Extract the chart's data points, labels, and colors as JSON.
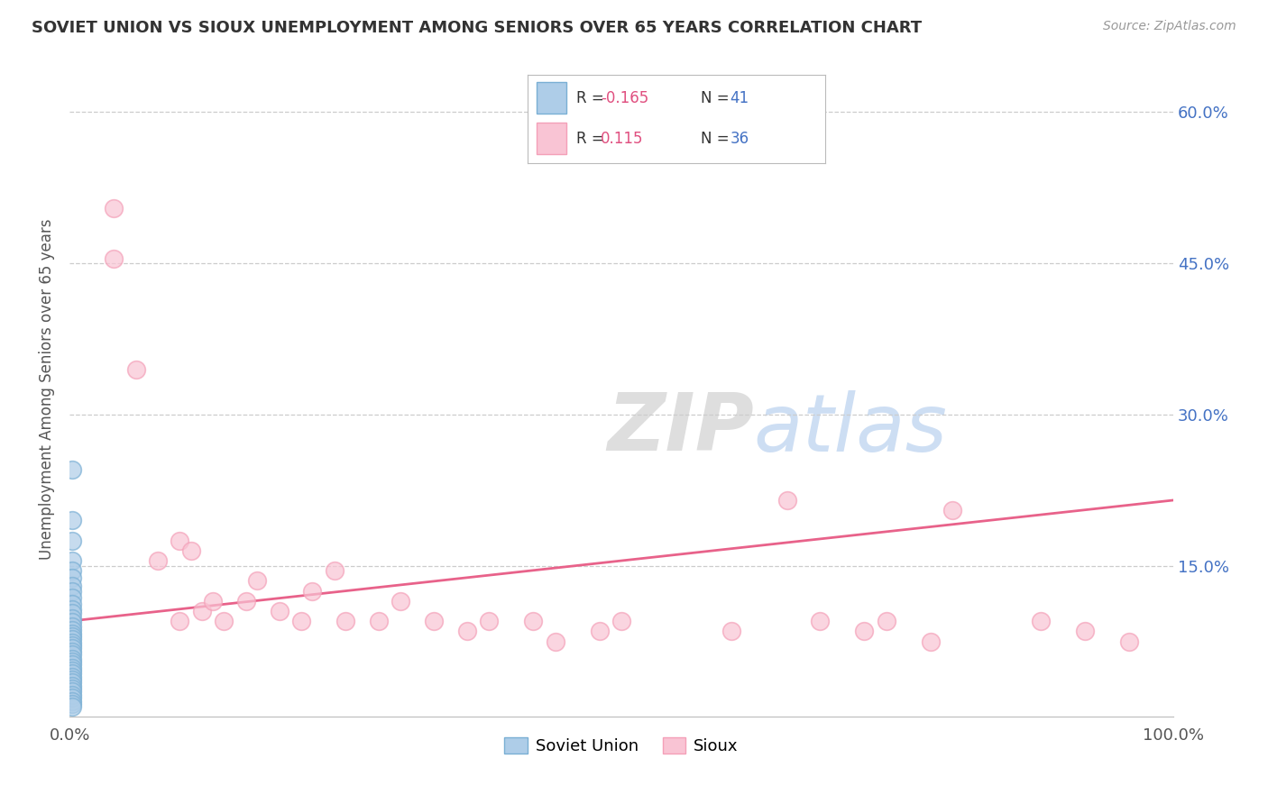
{
  "title": "SOVIET UNION VS SIOUX UNEMPLOYMENT AMONG SENIORS OVER 65 YEARS CORRELATION CHART",
  "source": "Source: ZipAtlas.com",
  "ylabel": "Unemployment Among Seniors over 65 years",
  "xlim": [
    0,
    1.0
  ],
  "ylim": [
    0,
    0.65
  ],
  "x_tick_labels": [
    "0.0%",
    "100.0%"
  ],
  "y_tick_labels": [
    "15.0%",
    "30.0%",
    "45.0%",
    "60.0%"
  ],
  "y_tick_values": [
    0.15,
    0.3,
    0.45,
    0.6
  ],
  "soviet_color": "#7aafd4",
  "sioux_color": "#f4a0b8",
  "soviet_fill": "#aecde8",
  "sioux_fill": "#f9c4d4",
  "trend_color_sioux": "#e8628a",
  "background_color": "#ffffff",
  "grid_color": "#cccccc",
  "title_color": "#333333",
  "source_color": "#999999",
  "r1_color": "#e05080",
  "r2_color": "#4472c4",
  "legend_text_color": "#333333",
  "right_tick_color": "#4472c4",
  "soviet_x": [
    0.002,
    0.002,
    0.002,
    0.002,
    0.002,
    0.002,
    0.002,
    0.002,
    0.002,
    0.002,
    0.002,
    0.002,
    0.002,
    0.002,
    0.002,
    0.002,
    0.002,
    0.002,
    0.002,
    0.002,
    0.002,
    0.002,
    0.002,
    0.002,
    0.002,
    0.002,
    0.002,
    0.002,
    0.002,
    0.002,
    0.002,
    0.002,
    0.002,
    0.002,
    0.002,
    0.002,
    0.002,
    0.002,
    0.002,
    0.002,
    0.002
  ],
  "soviet_y": [
    0.245,
    0.195,
    0.175,
    0.155,
    0.145,
    0.138,
    0.13,
    0.125,
    0.118,
    0.112,
    0.107,
    0.103,
    0.098,
    0.094,
    0.09,
    0.086,
    0.083,
    0.08,
    0.077,
    0.074,
    0.071,
    0.068,
    0.065,
    0.062,
    0.058,
    0.055,
    0.052,
    0.049,
    0.046,
    0.043,
    0.04,
    0.037,
    0.034,
    0.031,
    0.028,
    0.025,
    0.022,
    0.019,
    0.016,
    0.013,
    0.01
  ],
  "sioux_x": [
    0.04,
    0.04,
    0.06,
    0.08,
    0.1,
    0.1,
    0.11,
    0.12,
    0.13,
    0.14,
    0.16,
    0.17,
    0.19,
    0.21,
    0.22,
    0.24,
    0.25,
    0.28,
    0.3,
    0.33,
    0.36,
    0.38,
    0.42,
    0.44,
    0.48,
    0.5,
    0.6,
    0.65,
    0.68,
    0.72,
    0.74,
    0.78,
    0.8,
    0.88,
    0.92,
    0.96
  ],
  "sioux_y": [
    0.505,
    0.455,
    0.345,
    0.155,
    0.175,
    0.095,
    0.165,
    0.105,
    0.115,
    0.095,
    0.115,
    0.135,
    0.105,
    0.095,
    0.125,
    0.145,
    0.095,
    0.095,
    0.115,
    0.095,
    0.085,
    0.095,
    0.095,
    0.075,
    0.085,
    0.095,
    0.085,
    0.215,
    0.095,
    0.085,
    0.095,
    0.075,
    0.205,
    0.095,
    0.085,
    0.075
  ],
  "trend_x": [
    0.0,
    1.0
  ],
  "trend_y_start": 0.095,
  "trend_y_end": 0.215
}
